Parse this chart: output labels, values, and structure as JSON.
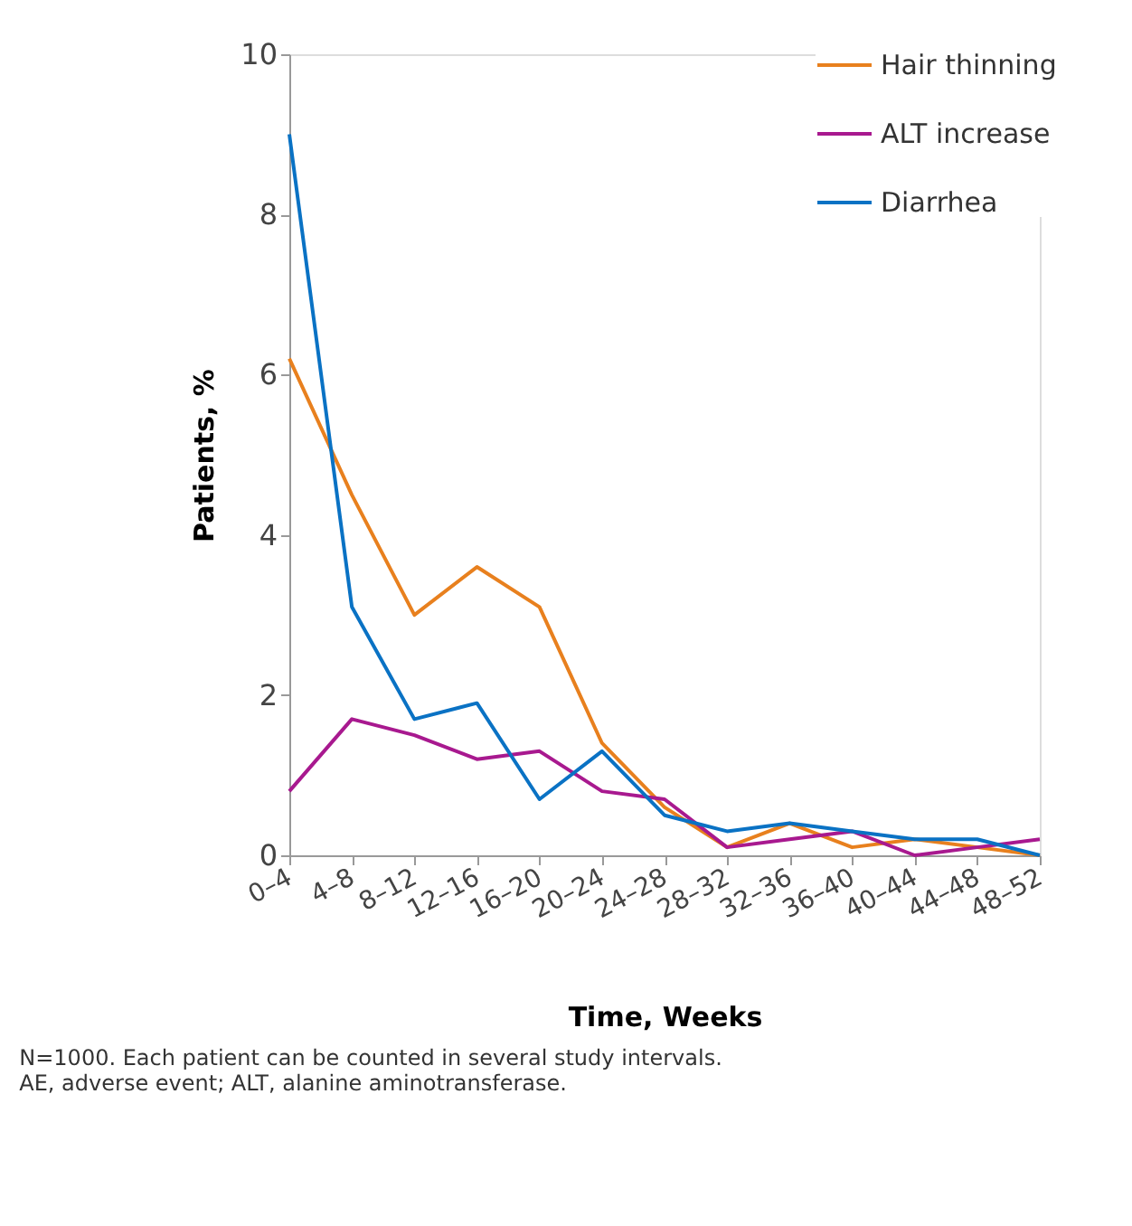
{
  "chart_data": {
    "type": "line",
    "xlabel": "Time, Weeks",
    "ylabel": "Patients, %",
    "categories": [
      "0–4",
      "4–8",
      "8–12",
      "12–16",
      "16–20",
      "20–24",
      "24–28",
      "28–32",
      "32–36",
      "36–40",
      "40–44",
      "44–48",
      "48–52"
    ],
    "series": [
      {
        "name": "Hair thinning",
        "color": "#e8801e",
        "values": [
          6.2,
          4.5,
          3.0,
          3.6,
          3.1,
          1.4,
          0.6,
          0.1,
          0.4,
          0.1,
          0.2,
          0.1,
          0.0
        ]
      },
      {
        "name": "ALT increase",
        "color": "#a8198f",
        "values": [
          0.8,
          1.7,
          1.5,
          1.2,
          1.3,
          0.8,
          0.7,
          0.1,
          0.2,
          0.3,
          0.0,
          0.1,
          0.2
        ]
      },
      {
        "name": "Diarrhea",
        "color": "#0a72c4",
        "values": [
          9.0,
          3.1,
          1.7,
          1.9,
          0.7,
          1.3,
          0.5,
          0.3,
          0.4,
          0.3,
          0.2,
          0.2,
          0.0
        ]
      }
    ],
    "ylim": [
      0,
      10
    ],
    "yticks": [
      0,
      2,
      4,
      6,
      8,
      10
    ],
    "grid": false,
    "legend": "top right",
    "marker": "none",
    "line_style": "solid",
    "annotations": [
      "N=1000. Each patient can be counted in several study intervals.",
      "AE, adverse event; ALT, alanine aminotransferase."
    ]
  }
}
